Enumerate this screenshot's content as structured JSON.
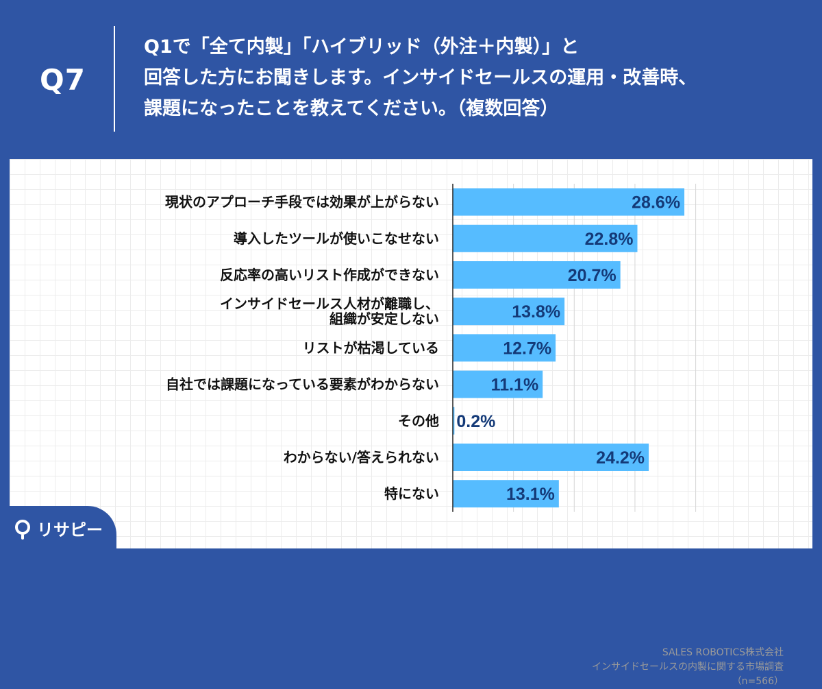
{
  "header": {
    "question_number": "Q7",
    "question_lines": [
      "Q1で「全て内製」「ハイブリッド（外注＋内製）」と",
      "回答した方にお聞きします。インサイドセールスの運用・改善時、",
      "課題になったことを教えてください。（複数回答）"
    ]
  },
  "chart_data": {
    "type": "bar",
    "orientation": "horizontal",
    "categories": [
      [
        "現状のアプローチ手段では効果が上がらない"
      ],
      [
        "導入したツールが使いこなせない"
      ],
      [
        "反応率の高いリスト作成ができない"
      ],
      [
        "インサイドセールス人材が離職し、",
        "組織が安定しない"
      ],
      [
        "リストが枯渇している"
      ],
      [
        "自社では課題になっている要素がわからない"
      ],
      [
        "その他"
      ],
      [
        "わからない/答えられない"
      ],
      [
        "特にない"
      ]
    ],
    "values": [
      28.6,
      22.8,
      20.7,
      13.8,
      12.7,
      11.1,
      0.2,
      24.2,
      13.1
    ],
    "value_labels": [
      "28.6%",
      "22.8%",
      "20.7%",
      "13.8%",
      "12.7%",
      "11.1%",
      "0.2%",
      "24.2%",
      "13.1%"
    ],
    "xlim": [
      0,
      30
    ],
    "gridlines": [
      0,
      7.5,
      15,
      22.5,
      30
    ],
    "bar_color": "#56bcff",
    "value_label_color": "#143a78",
    "grid": true
  },
  "source": {
    "lines": [
      "SALES ROBOTICS株式会社",
      "インサイドセールスの内製に関する市場調査",
      "（n=566）"
    ]
  },
  "logo": {
    "text": "リサピー",
    "icon": "search-pin-icon"
  },
  "colors": {
    "background": "#2f55a4",
    "panel": "#ffffff",
    "accent": "#56bcff"
  }
}
